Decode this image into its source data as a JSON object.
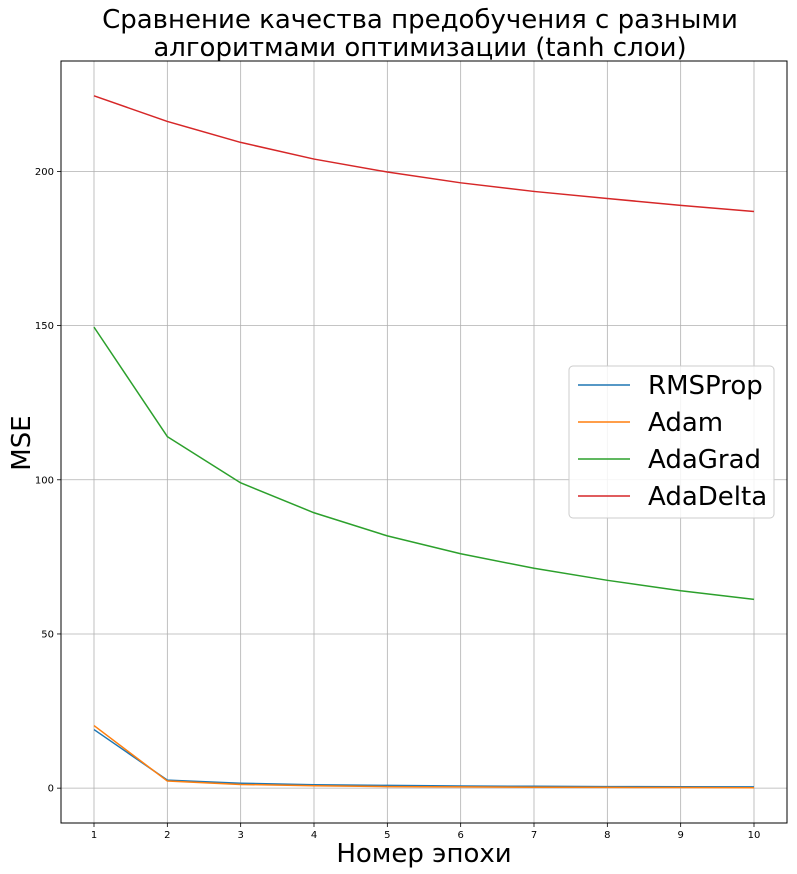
{
  "chart_data": {
    "type": "line",
    "title_lines": [
      "Сравнение качества предобучения с разными",
      "алгоритмами оптимизации (tanh слои)"
    ],
    "xlabel": "Номер эпохи",
    "ylabel": "MSE",
    "x": [
      1,
      2,
      3,
      4,
      5,
      6,
      7,
      8,
      9,
      10
    ],
    "x_ticks": [
      "1",
      "2",
      "3",
      "4",
      "5",
      "6",
      "7",
      "8",
      "9",
      "10"
    ],
    "y_ticks": [
      "0",
      "50",
      "100",
      "150",
      "200"
    ],
    "xlim": [
      0.55,
      10.45
    ],
    "ylim": [
      -11.3,
      235.8
    ],
    "grid": true,
    "legend_position": "center-right",
    "series": [
      {
        "name": "RMSProp",
        "color": "#1f77b4",
        "values": [
          19.0,
          2.6,
          1.6,
          1.1,
          0.9,
          0.7,
          0.6,
          0.5,
          0.45,
          0.4
        ]
      },
      {
        "name": "Adam",
        "color": "#ff7f0e",
        "values": [
          20.3,
          2.3,
          1.2,
          0.8,
          0.5,
          0.4,
          0.3,
          0.25,
          0.2,
          0.15
        ]
      },
      {
        "name": "AdaGrad",
        "color": "#2ca02c",
        "values": [
          149.5,
          114.0,
          99.0,
          89.3,
          81.8,
          76.0,
          71.3,
          67.4,
          64.0,
          61.2
        ]
      },
      {
        "name": "AdaDelta",
        "color": "#d62728",
        "values": [
          224.5,
          216.2,
          209.4,
          204.0,
          199.8,
          196.3,
          193.5,
          191.2,
          189.0,
          187.0
        ]
      }
    ]
  }
}
